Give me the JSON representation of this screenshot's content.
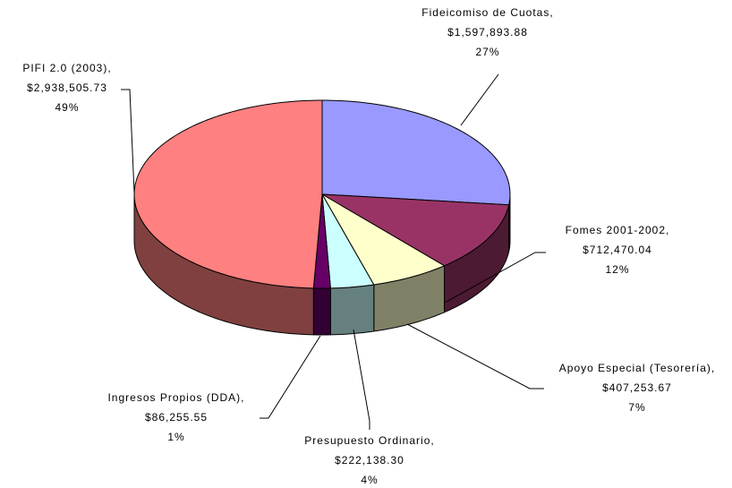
{
  "chart_data": {
    "type": "pie3d",
    "categories": [
      "Fideicomiso de Cuotas,",
      "Fomes 2001-2002,",
      "Apoyo Especial (Tesorería),",
      "Presupuesto Ordinario,",
      "Ingresos Propios (DDA),",
      "PIFI 2.0 (2003),"
    ],
    "values": [
      1597893.88,
      712470.04,
      407253.67,
      222138.3,
      86255.55,
      2938505.73
    ],
    "value_labels": [
      "$1,597,893.88",
      "$712,470.04",
      "$407,253.67",
      "$222,138.30",
      "$86,255.55",
      "$2,938,505.73"
    ],
    "percent_labels": [
      "27%",
      "12%",
      "7%",
      "4%",
      "1%",
      "49%"
    ],
    "colors": [
      "#9999ff",
      "#993366",
      "#ffffcc",
      "#ccffff",
      "#660066",
      "#ff8080"
    ]
  }
}
